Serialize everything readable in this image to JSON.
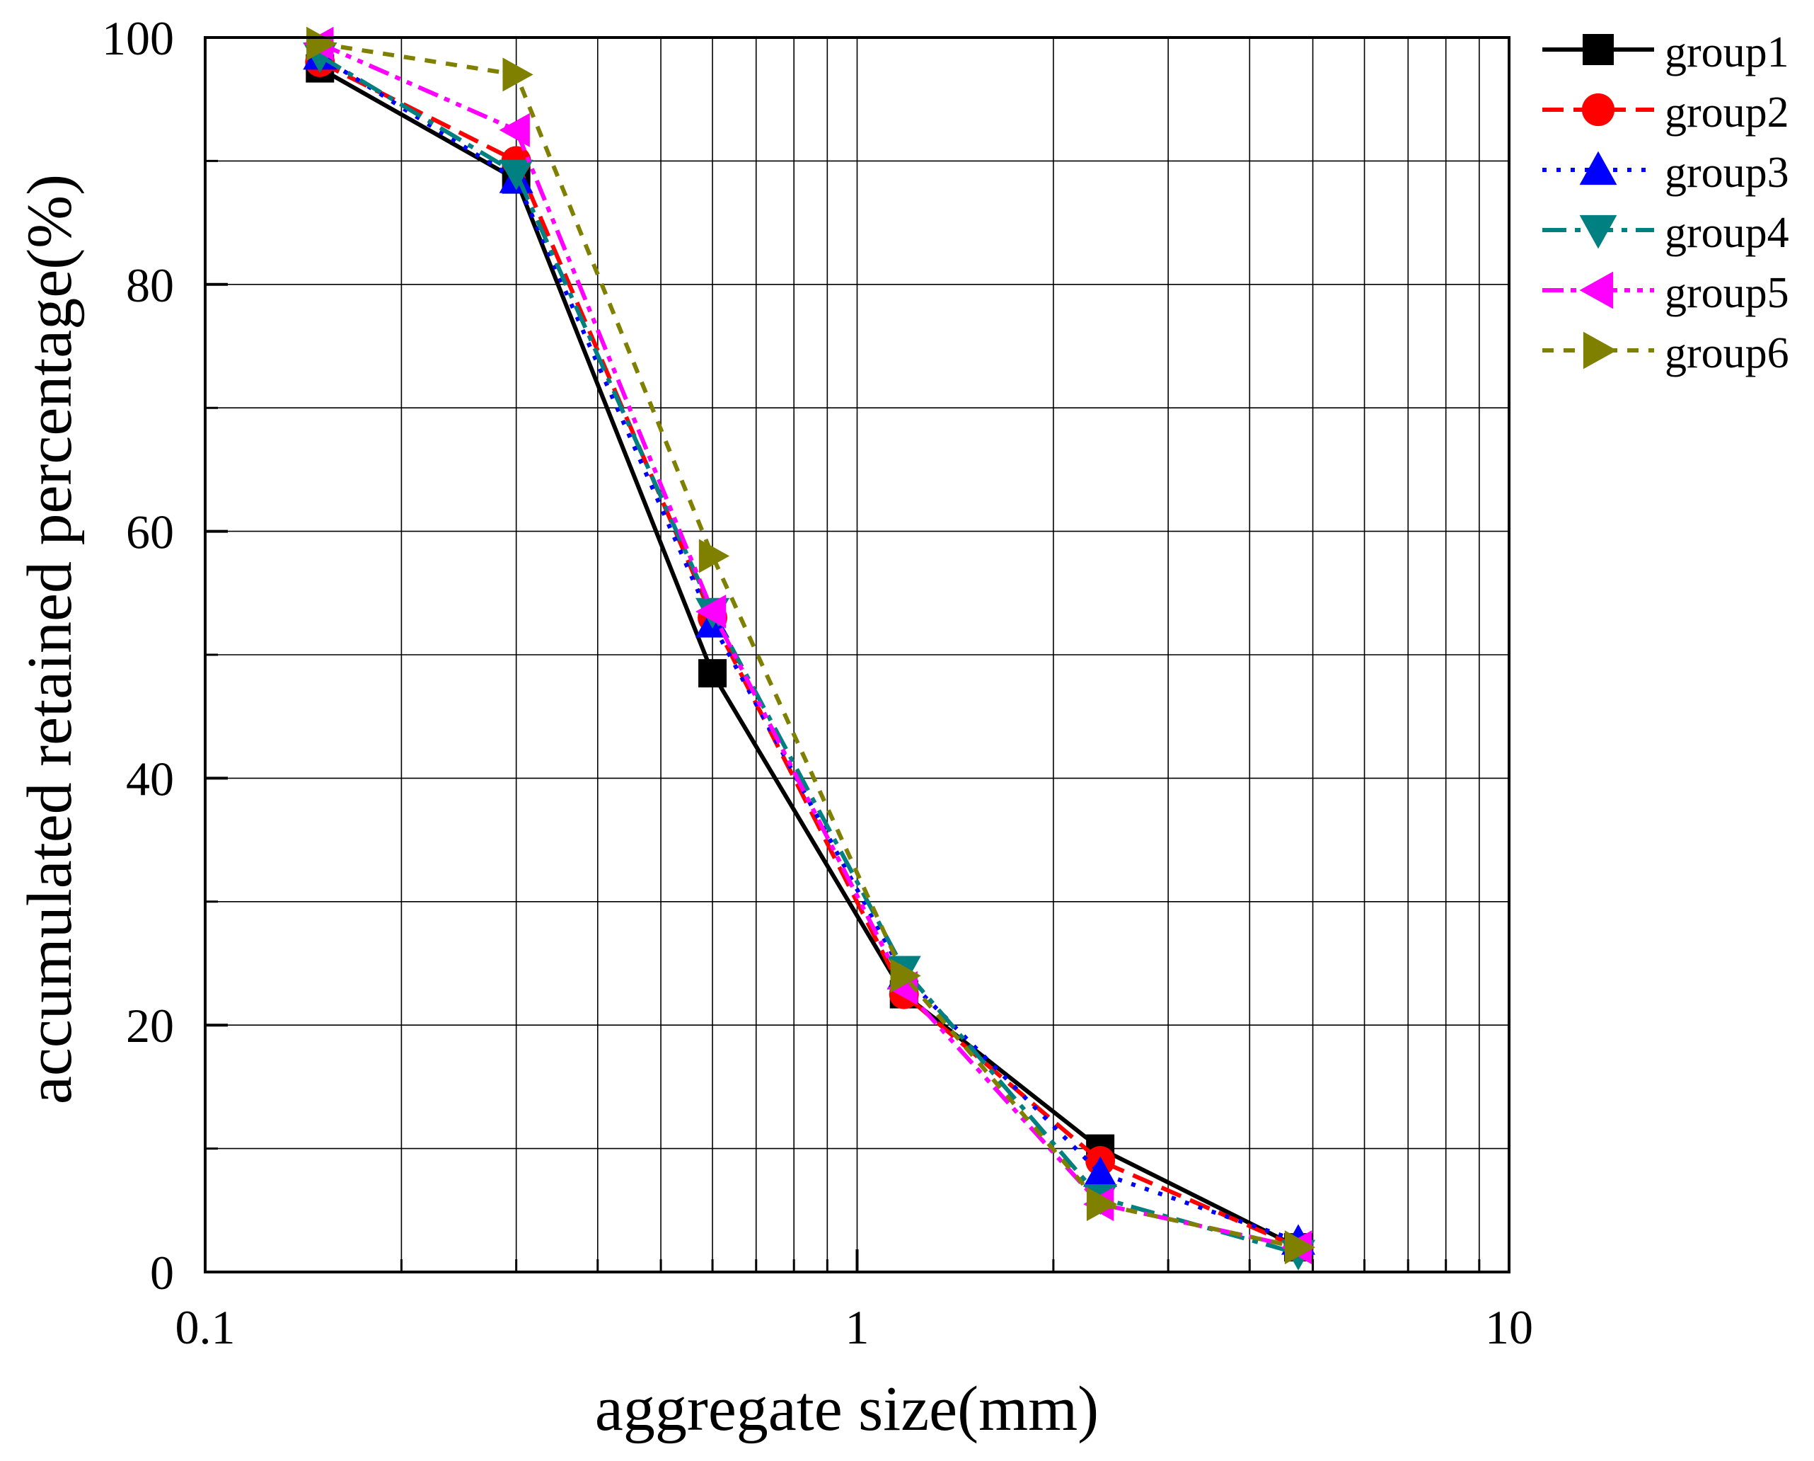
{
  "chart_data": {
    "type": "line",
    "title": "",
    "xlabel": "aggregate size(mm)",
    "ylabel": "accumulated retained percentage(%)",
    "xscale": "log",
    "xlim": [
      0.1,
      10
    ],
    "ylim": [
      0,
      100
    ],
    "x_ticks": [
      {
        "value": 0.1,
        "label": "0.1"
      },
      {
        "value": 1,
        "label": "1"
      },
      {
        "value": 10,
        "label": "10"
      }
    ],
    "y_ticks": [
      {
        "value": 0,
        "label": "0"
      },
      {
        "value": 20,
        "label": "20"
      },
      {
        "value": 40,
        "label": "40"
      },
      {
        "value": 60,
        "label": "60"
      },
      {
        "value": 80,
        "label": "80"
      },
      {
        "value": 100,
        "label": "100"
      }
    ],
    "y_minor_ticks": [
      10,
      30,
      50,
      70,
      90
    ],
    "grid": true,
    "legend_position": "outside-top-right",
    "x": [
      0.15,
      0.3,
      0.6,
      1.18,
      2.36,
      4.75
    ],
    "series": [
      {
        "name": "group1",
        "marker": "square",
        "dash": "solid",
        "color": "#000000",
        "values": [
          97.5,
          88.5,
          48.5,
          22.5,
          10.0,
          2.0
        ]
      },
      {
        "name": "group2",
        "marker": "circle",
        "dash": "dash",
        "color": "#ff0000",
        "values": [
          98.0,
          90.0,
          53.0,
          22.5,
          9.0,
          2.0
        ]
      },
      {
        "name": "group3",
        "marker": "triangle-up",
        "dash": "dot",
        "color": "#0000ff",
        "values": [
          98.5,
          88.5,
          52.5,
          24.0,
          8.0,
          2.5
        ]
      },
      {
        "name": "group4",
        "marker": "triangle-down",
        "dash": "dashdot",
        "color": "#008080",
        "values": [
          98.5,
          89.0,
          53.5,
          24.5,
          6.0,
          1.5
        ]
      },
      {
        "name": "group5",
        "marker": "triangle-left",
        "dash": "dashdotdot",
        "color": "#ff00ff",
        "values": [
          99.5,
          92.5,
          53.5,
          23.0,
          5.5,
          2.0
        ]
      },
      {
        "name": "group6",
        "marker": "triangle-right",
        "dash": "shortdash",
        "color": "#808000",
        "values": [
          99.5,
          97.0,
          58.0,
          24.0,
          5.5,
          2.0
        ]
      }
    ]
  }
}
